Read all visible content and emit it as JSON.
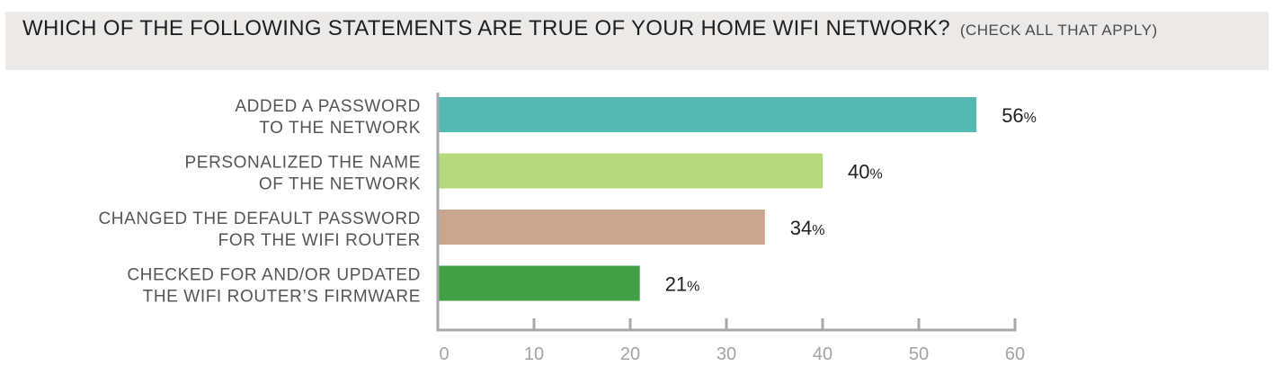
{
  "title": {
    "main": "WHICH OF THE FOLLOWING STATEMENTS ARE TRUE OF YOUR HOME WIFI NETWORK?",
    "note": "(CHECK ALL THAT APPLY)"
  },
  "chart_data": {
    "type": "bar",
    "orientation": "horizontal",
    "categories": [
      [
        "ADDED A PASSWORD",
        "TO THE NETWORK"
      ],
      [
        "PERSONALIZED THE NAME",
        "OF THE NETWORK"
      ],
      [
        "CHANGED THE DEFAULT PASSWORD",
        "FOR THE WIFI ROUTER"
      ],
      [
        "CHECKED FOR AND/OR UPDATED",
        "THE WIFI ROUTER’S FIRMWARE"
      ]
    ],
    "values": [
      56,
      40,
      34,
      21
    ],
    "value_unit": "%",
    "colors": [
      "#55b8b1",
      "#b7d97e",
      "#c9a78f",
      "#41a045"
    ],
    "xlim": [
      0,
      60
    ],
    "xticks": [
      0,
      10,
      20,
      30,
      40,
      50,
      60
    ],
    "axis_color": "#a8a8a8",
    "grid": false,
    "legend": "none"
  }
}
